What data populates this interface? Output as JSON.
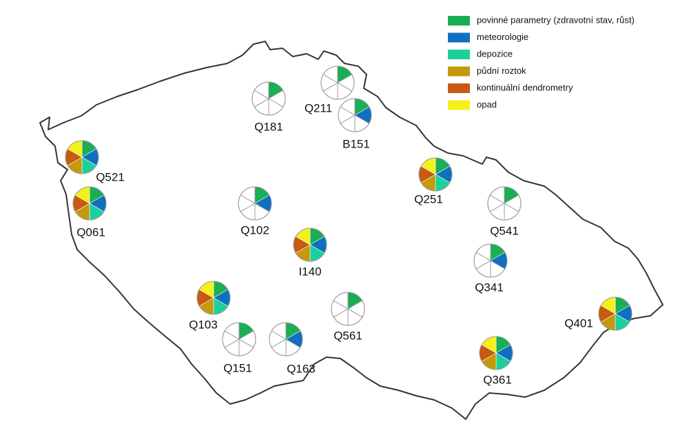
{
  "legend": {
    "items": [
      {
        "label": "povinné parametry (zdravotní stav, růst)",
        "color": "#1aaf54"
      },
      {
        "label": "meteorologie",
        "color": "#1070c0"
      },
      {
        "label": "depozice",
        "color": "#1ccf9c"
      },
      {
        "label": "půdní roztok",
        "color": "#c49a0c"
      },
      {
        "label": "kontinuální dendrometry",
        "color": "#c85a12"
      },
      {
        "label": "opad",
        "color": "#f4f01a"
      }
    ]
  },
  "sites": [
    {
      "label": "Q181",
      "measured": [
        true,
        false,
        false,
        false,
        false,
        false
      ]
    },
    {
      "label": "Q211",
      "measured": [
        true,
        false,
        false,
        false,
        false,
        false
      ]
    },
    {
      "label": "B151",
      "measured": [
        true,
        true,
        false,
        false,
        false,
        false
      ]
    },
    {
      "label": "Q521",
      "measured": [
        true,
        true,
        true,
        true,
        true,
        true
      ]
    },
    {
      "label": "Q061",
      "measured": [
        true,
        true,
        true,
        true,
        true,
        true
      ]
    },
    {
      "label": "Q102",
      "measured": [
        true,
        true,
        false,
        false,
        false,
        false
      ]
    },
    {
      "label": "I140",
      "measured": [
        true,
        true,
        true,
        true,
        true,
        true
      ]
    },
    {
      "label": "Q251",
      "measured": [
        true,
        true,
        true,
        true,
        true,
        true
      ]
    },
    {
      "label": "Q541",
      "measured": [
        true,
        false,
        false,
        false,
        false,
        false
      ]
    },
    {
      "label": "Q341",
      "measured": [
        true,
        true,
        false,
        false,
        false,
        false
      ]
    },
    {
      "label": "Q103",
      "measured": [
        true,
        true,
        true,
        true,
        true,
        true
      ]
    },
    {
      "label": "Q151",
      "measured": [
        true,
        false,
        false,
        false,
        false,
        false
      ]
    },
    {
      "label": "Q163",
      "measured": [
        true,
        true,
        false,
        false,
        false,
        false
      ]
    },
    {
      "label": "Q561",
      "measured": [
        true,
        false,
        false,
        false,
        false,
        false
      ]
    },
    {
      "label": "Q401",
      "measured": [
        true,
        true,
        true,
        true,
        true,
        true
      ]
    },
    {
      "label": "Q361",
      "measured": [
        true,
        true,
        true,
        true,
        true,
        true
      ]
    }
  ]
}
